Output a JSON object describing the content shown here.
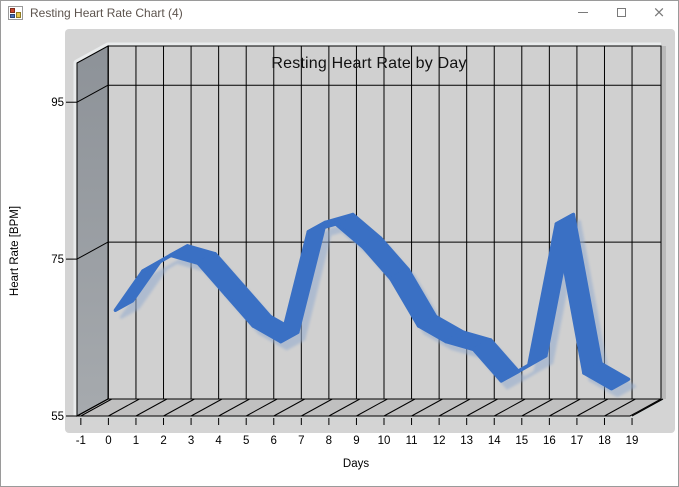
{
  "window": {
    "title": "Resting Heart Rate Chart (4)",
    "buttons": {
      "minimize": "minimize",
      "maximize": "maximize",
      "close": "close"
    }
  },
  "chart_data": {
    "type": "line",
    "style": "3d-ribbon",
    "title": "Resting Heart Rate by Day",
    "xlabel": "Days",
    "ylabel": "Heart Rate [BPM]",
    "x": [
      0,
      1,
      2,
      3,
      4,
      5,
      6,
      7,
      8,
      9,
      10,
      11,
      12,
      13,
      14,
      15,
      16,
      17,
      18
    ],
    "values": [
      68,
      73,
      75,
      74,
      70,
      66,
      64,
      78,
      79,
      76,
      72,
      66,
      64,
      63,
      59,
      61,
      79,
      60,
      58
    ],
    "xticks": [
      -1,
      0,
      1,
      2,
      3,
      4,
      5,
      6,
      7,
      8,
      9,
      10,
      11,
      12,
      13,
      14,
      15,
      16,
      17,
      18,
      19
    ],
    "yticks": [
      55,
      75,
      95
    ],
    "ylim": [
      55,
      100
    ],
    "xlim": [
      -1,
      19
    ],
    "grid": true,
    "legend": "none",
    "line_color": "#3A70C4",
    "line_edge_color": "#2F5FAD",
    "shadow_color": "#93ABCF"
  },
  "colors": {
    "control_bg": "#FFFFFF",
    "chartarea_bg": "#D4D4D4",
    "back_wall": "#D0D0D0",
    "side_wall_top": "#8D9298",
    "side_wall_bottom": "#A6AaAE",
    "floor": "#C0C0C0",
    "grid_line": "#000000",
    "bevel_light": "#E9EBEC",
    "bevel_dark": "#B2B2B2",
    "tick_label": "#000000"
  }
}
